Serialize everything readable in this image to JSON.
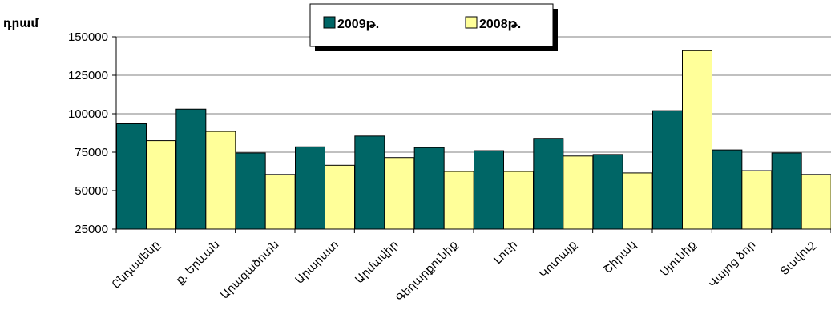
{
  "chart_data": {
    "type": "bar",
    "ylabel": "դրամ",
    "ylim": [
      25000,
      150000
    ],
    "yticks": [
      "150000",
      "125000",
      "100000",
      "75000",
      "50000",
      "25000"
    ],
    "ytick_values": [
      150000,
      125000,
      100000,
      75000,
      50000,
      25000
    ],
    "grid": true,
    "legend_position": "top-center",
    "categories": [
      "Ընդամենը",
      "ք. Երևան",
      "Արագածոտն",
      "Արարատ",
      "Արմավիր",
      "Գեղարքունիք",
      "Լոռի",
      "Կոտայք",
      "Շիրակ",
      "Սյունիք",
      "Վայոց ձոր",
      "Տավուշ"
    ],
    "series": [
      {
        "name": "2009թ.",
        "color": "#006666",
        "values": [
          93500,
          103000,
          74500,
          78500,
          85500,
          78000,
          76000,
          84000,
          73500,
          102000,
          76500,
          74500
        ]
      },
      {
        "name": "2008թ.",
        "color": "#FFFF99",
        "values": [
          82500,
          88500,
          60500,
          66500,
          71500,
          62500,
          62500,
          72500,
          61500,
          141000,
          63000,
          60500
        ]
      }
    ]
  }
}
